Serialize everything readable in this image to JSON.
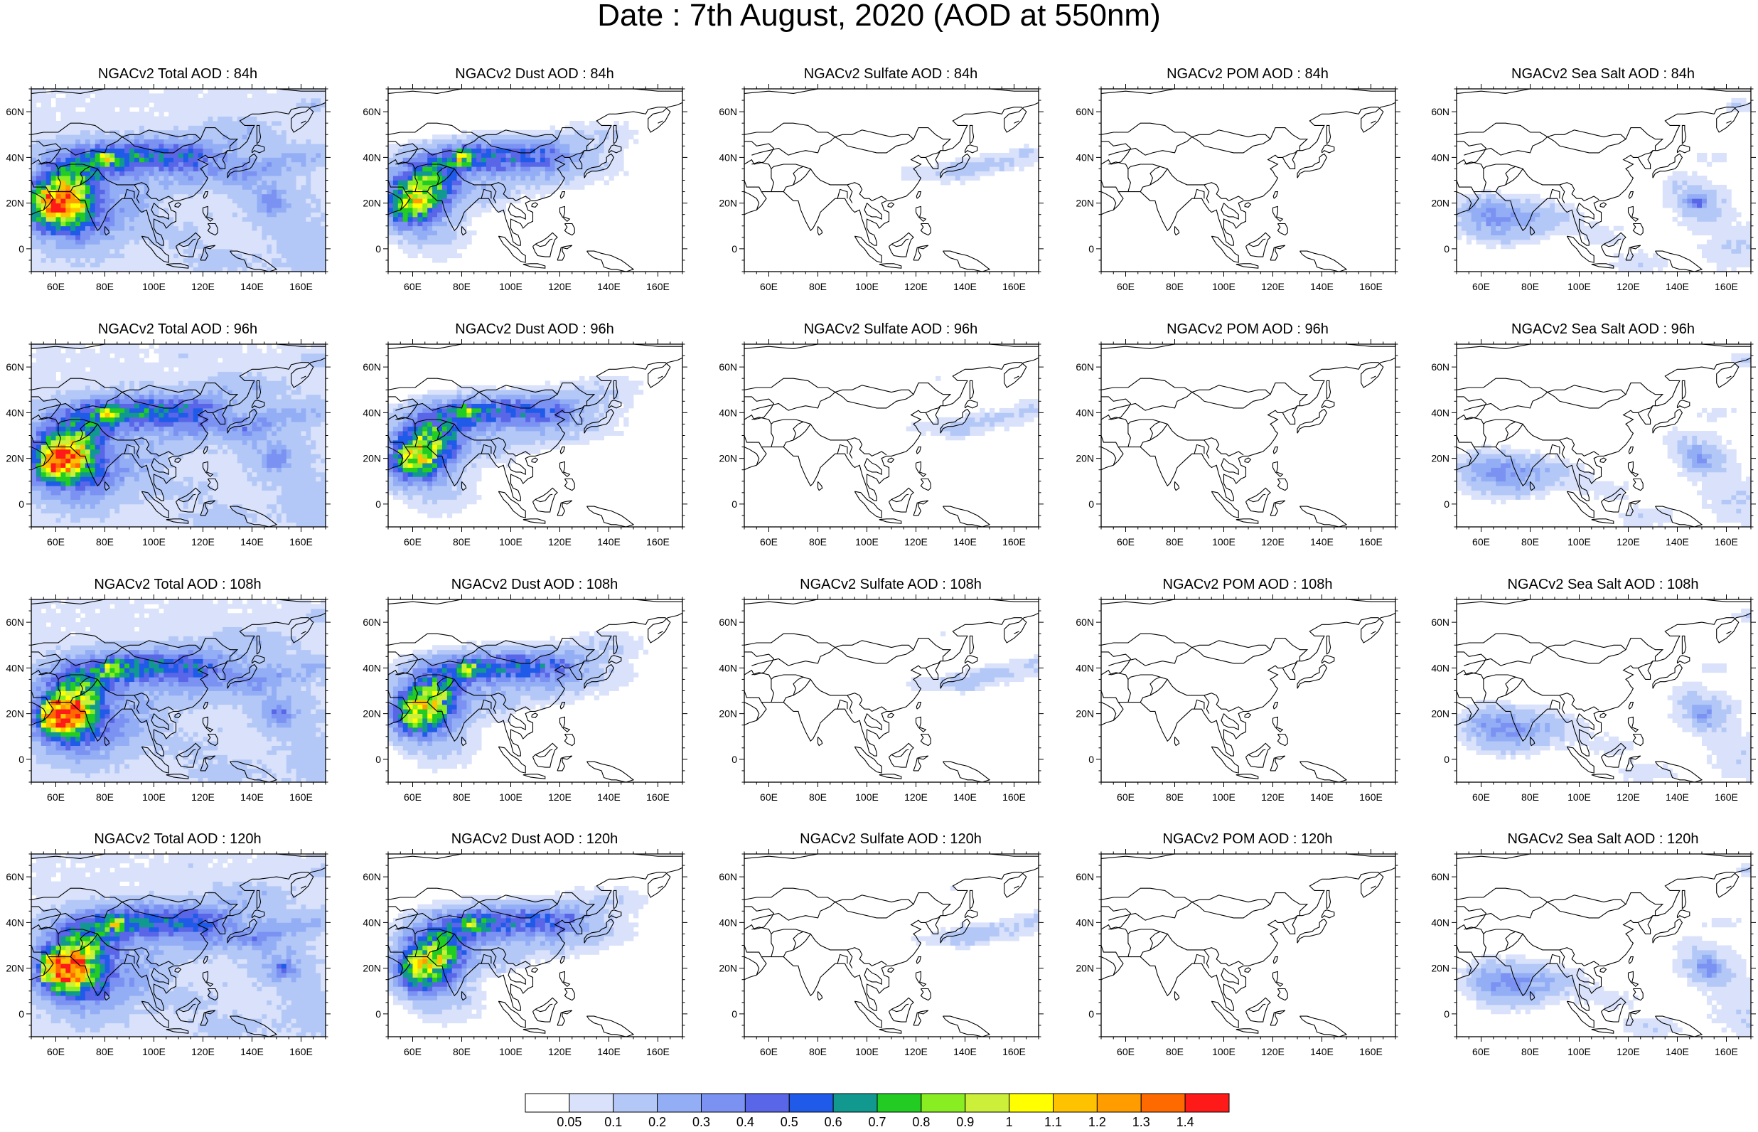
{
  "title": "Date : 7th August, 2020 (AOD at 550nm)",
  "lon_ticks": [
    "60E",
    "80E",
    "100E",
    "120E",
    "140E",
    "160E"
  ],
  "lat_ticks": [
    "60N",
    "40N",
    "20N",
    "0"
  ],
  "panels": [
    [
      {
        "title": "NGACv2 Total AOD : 84h",
        "kind": "total",
        "lead": 0
      },
      {
        "title": "NGACv2 Dust AOD : 84h",
        "kind": "dust",
        "lead": 0
      },
      {
        "title": "NGACv2 Sulfate AOD : 84h",
        "kind": "sulfate",
        "lead": 0
      },
      {
        "title": "NGACv2 POM AOD : 84h",
        "kind": "pom",
        "lead": 0
      },
      {
        "title": "NGACv2 Sea Salt AOD : 84h",
        "kind": "seasalt",
        "lead": 0
      }
    ],
    [
      {
        "title": "NGACv2 Total AOD : 96h",
        "kind": "total",
        "lead": 1
      },
      {
        "title": "NGACv2 Dust AOD : 96h",
        "kind": "dust",
        "lead": 1
      },
      {
        "title": "NGACv2 Sulfate AOD : 96h",
        "kind": "sulfate",
        "lead": 1
      },
      {
        "title": "NGACv2 POM AOD : 96h",
        "kind": "pom",
        "lead": 1
      },
      {
        "title": "NGACv2 Sea Salt AOD : 96h",
        "kind": "seasalt",
        "lead": 1
      }
    ],
    [
      {
        "title": "NGACv2 Total AOD : 108h",
        "kind": "total",
        "lead": 2
      },
      {
        "title": "NGACv2 Dust AOD : 108h",
        "kind": "dust",
        "lead": 2
      },
      {
        "title": "NGACv2 Sulfate AOD : 108h",
        "kind": "sulfate",
        "lead": 2
      },
      {
        "title": "NGACv2 POM AOD : 108h",
        "kind": "pom",
        "lead": 2
      },
      {
        "title": "NGACv2 Sea Salt AOD : 108h",
        "kind": "seasalt",
        "lead": 2
      }
    ],
    [
      {
        "title": "NGACv2 Total AOD : 120h",
        "kind": "total",
        "lead": 3
      },
      {
        "title": "NGACv2 Dust AOD : 120h",
        "kind": "dust",
        "lead": 3
      },
      {
        "title": "NGACv2 Sulfate AOD : 120h",
        "kind": "sulfate",
        "lead": 3
      },
      {
        "title": "NGACv2 POM AOD : 120h",
        "kind": "pom",
        "lead": 3
      },
      {
        "title": "NGACv2 Sea Salt  AOD : 120h",
        "kind": "seasalt",
        "lead": 3
      }
    ]
  ],
  "colorbar": {
    "labels": [
      "0.05",
      "0.1",
      "0.2",
      "0.3",
      "0.4",
      "0.5",
      "0.6",
      "0.7",
      "0.8",
      "0.9",
      "1",
      "1.1",
      "1.2",
      "1.3",
      "1.4"
    ],
    "colors": [
      "#ffffff",
      "#d9e2fa",
      "#b4c8f7",
      "#93aef5",
      "#7b92f2",
      "#5a66e8",
      "#1f5be8",
      "#11998f",
      "#22cc22",
      "#88ee22",
      "#ccf03a",
      "#ffff00",
      "#ffc200",
      "#ff9c00",
      "#ff6a00",
      "#ff1a1a"
    ]
  }
}
